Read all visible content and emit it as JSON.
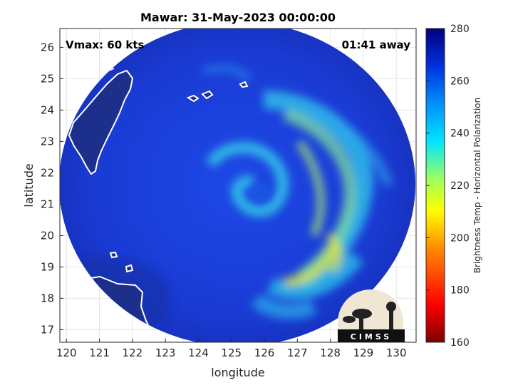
{
  "title": "Mawar: 31-May-2023 00:00:00",
  "annotations": {
    "vmax": "Vmax: 60 kts",
    "time_away": "01:41 away"
  },
  "axes": {
    "xlabel": "longitude",
    "ylabel": "latitude",
    "xlim": [
      119.8,
      130.6
    ],
    "ylim": [
      16.6,
      26.6
    ],
    "xticks": [
      "120",
      "121",
      "122",
      "123",
      "124",
      "125",
      "126",
      "127",
      "128",
      "129",
      "130"
    ],
    "yticks": [
      "17",
      "18",
      "19",
      "20",
      "21",
      "22",
      "23",
      "24",
      "25",
      "26"
    ]
  },
  "colorbar": {
    "label": "Brightness Temp - Horizontal Polarization",
    "ticks": [
      "160",
      "180",
      "200",
      "220",
      "240",
      "260",
      "280"
    ],
    "range": [
      160,
      280
    ],
    "colors": [
      "#7f0000",
      "#ff0000",
      "#ff7f00",
      "#ffff00",
      "#7fff7f",
      "#00ffff",
      "#007fff",
      "#0000ff",
      "#00007f"
    ]
  },
  "logo": {
    "text": "CIMSS"
  },
  "colors": {
    "background_swath": "#1a3fd6",
    "deep_blue": "#1232a8",
    "coast_outline": "#ffffff",
    "land_fill": "#1c2f8a"
  }
}
